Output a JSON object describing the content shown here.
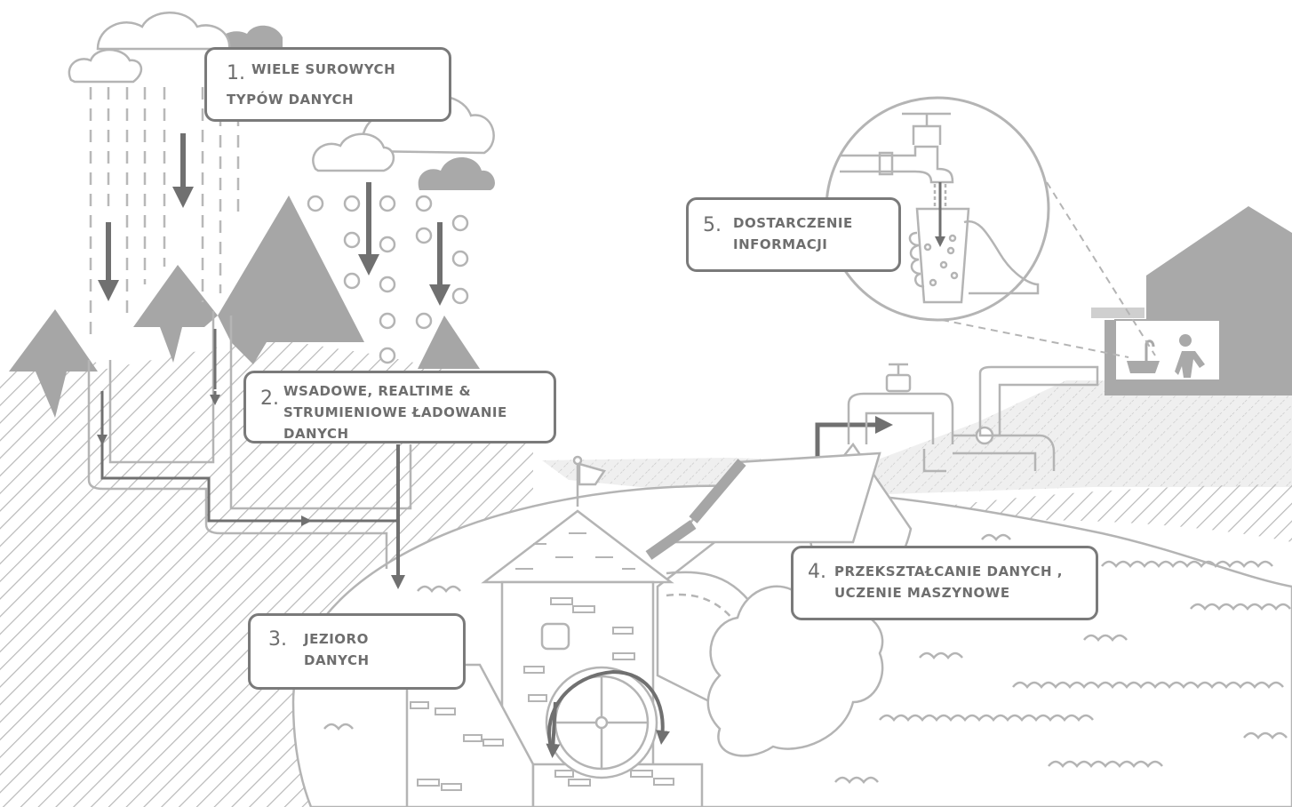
{
  "stages": [
    {
      "id": "raw-data",
      "number": "1.",
      "line1": "WIELE SUROWYCH",
      "line2": "TYPÓW DANYCH",
      "line3": ""
    },
    {
      "id": "loading",
      "number": "2.",
      "line1": "WSADOWE, REALTIME &",
      "line2": "STRUMIENIOWE ŁADOWANIE",
      "line3": "DANYCH"
    },
    {
      "id": "data-lake",
      "number": "3.",
      "line1": "JEZIORO",
      "line2": "DANYCH",
      "line3": ""
    },
    {
      "id": "transform",
      "number": "4.",
      "line1": "PRZEKSZTAŁCANIE DANYCH ,",
      "line2": "UCZENIE MASZYNOWE",
      "line3": ""
    },
    {
      "id": "delivery",
      "number": "5.",
      "line1": "DOSTARCZENIE",
      "line2": "INFORMACJI",
      "line3": ""
    }
  ],
  "colors": {
    "line_light": "#b4b4b4",
    "line_mid": "#9a9a9a",
    "arrow_dark": "#707070",
    "fill_mountain": "#a6a6a6",
    "fill_house": "#a9a9a9",
    "fill_cloud_dark": "#a9a9a9"
  }
}
